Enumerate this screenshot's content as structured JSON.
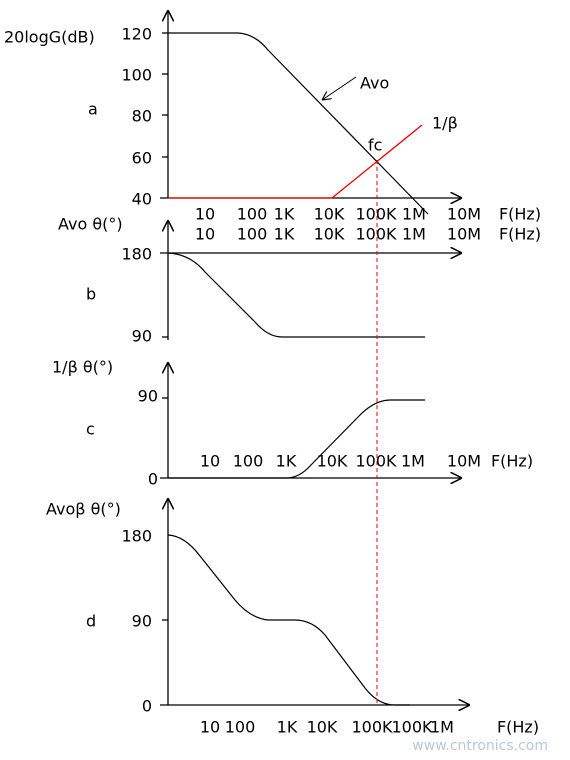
{
  "panels": [
    {
      "label": "a",
      "y_title": "20logG(dB)",
      "y_ticks": [
        "120",
        "100",
        "80",
        "60",
        "40"
      ],
      "freq_rows": [
        [
          "10",
          "100",
          "1K",
          "10K",
          "100K",
          "1M",
          "10M",
          "F(Hz)"
        ],
        [
          "10",
          "100",
          "1K",
          "10K",
          "100K",
          "1M",
          "10M",
          "F(Hz)"
        ]
      ],
      "curve_labels": [
        "Avo",
        "1/β",
        "fc"
      ]
    },
    {
      "label": "b",
      "y_title": "Avo θ(°)",
      "y_ticks": [
        "180",
        "90"
      ]
    },
    {
      "label": "c",
      "y_title": "1/β θ(°)",
      "y_ticks": [
        "90",
        "0"
      ],
      "freq_rows": [
        [
          "10",
          "100",
          "1K",
          "10K",
          "100K",
          "1M",
          "10M",
          "F(Hz)"
        ]
      ]
    },
    {
      "label": "d",
      "y_title": "Avoβ θ(°)",
      "y_ticks": [
        "180",
        "90",
        "0"
      ],
      "freq_rows": [
        [
          "10",
          "100",
          "1K",
          "10K",
          "100K",
          "100K",
          "1M",
          "F(Hz)"
        ]
      ]
    }
  ],
  "watermark": "www.cntronics.com"
}
